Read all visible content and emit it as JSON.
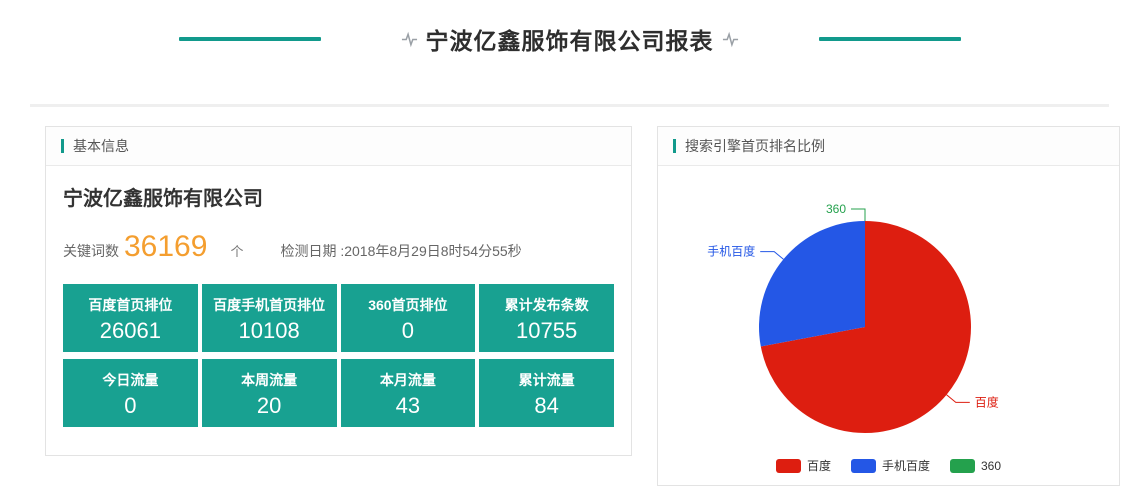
{
  "page": {
    "title": "宁波亿鑫服饰有限公司报表"
  },
  "colors": {
    "accent_teal": "#129a8c",
    "stat_box_teal": "#18a191",
    "keyword_orange": "#f49e2f",
    "baidu_red": "#dd1e10",
    "mobile_baidu_blue": "#2457e6",
    "so360_green": "#24a14d"
  },
  "basic_info": {
    "header": "基本信息",
    "company_name": "宁波亿鑫服饰有限公司",
    "keyword_label": "关键词数",
    "keyword_count": "36169",
    "keyword_unit": "个",
    "check_date_label": "检测日期 :",
    "check_date_value": "2018年8月29日8时54分55秒",
    "stats": [
      {
        "label": "百度首页排位",
        "value": "26061"
      },
      {
        "label": "百度手机首页排位",
        "value": "10108"
      },
      {
        "label": "360首页排位",
        "value": "0"
      },
      {
        "label": "累计发布条数",
        "value": "10755"
      },
      {
        "label": "今日流量",
        "value": "0"
      },
      {
        "label": "本周流量",
        "value": "20"
      },
      {
        "label": "本月流量",
        "value": "43"
      },
      {
        "label": "累计流量",
        "value": "84"
      }
    ]
  },
  "pie_panel": {
    "header": "搜索引擎首页排名比例"
  },
  "chart_data": {
    "type": "pie",
    "title": "搜索引擎首页排名比例",
    "start_angle_deg_from_top": 0,
    "clockwise": true,
    "legend_position": "bottom",
    "series": [
      {
        "name": "百度",
        "value": 26061,
        "color": "#dd1e10"
      },
      {
        "name": "手机百度",
        "value": 10108,
        "color": "#2457e6"
      },
      {
        "name": "360",
        "value": 0,
        "color": "#24a14d"
      }
    ]
  }
}
